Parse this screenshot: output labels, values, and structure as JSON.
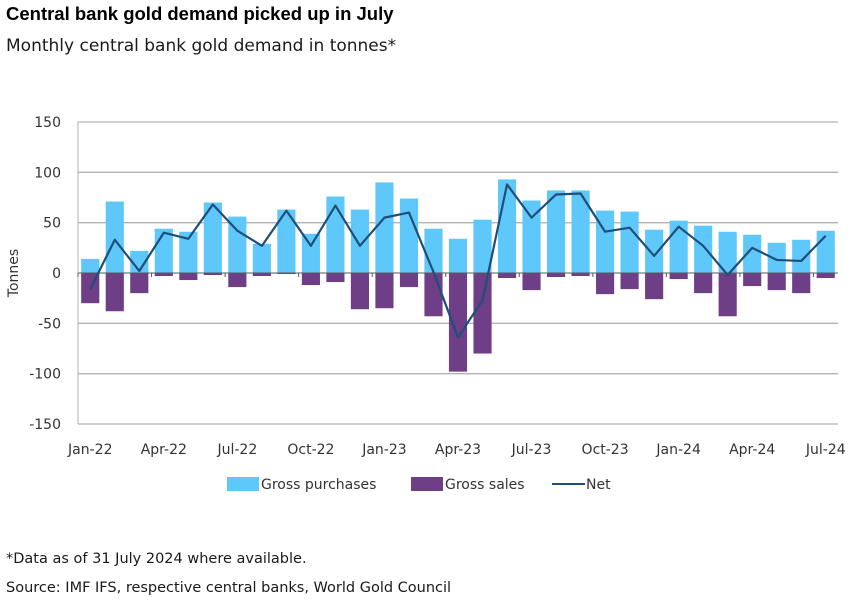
{
  "header": {
    "title": "Central bank gold demand picked up in July",
    "subtitle": "Monthly central bank gold demand in tonnes*"
  },
  "footer": {
    "note": "*Data as of 31 July 2024 where available.",
    "source": "Source: IMF IFS, respective central banks, World Gold Council"
  },
  "colors": {
    "purchases": "#5EC8FA",
    "sales": "#6E3F86",
    "net": "#1F4E79",
    "grid": "#b3b3b3",
    "axis": "#595959"
  },
  "chart_data": {
    "type": "bar",
    "title": "Central bank gold demand picked up in July",
    "subtitle": "Monthly central bank gold demand in tonnes*",
    "xlabel": "",
    "ylabel": "Tonnes",
    "ylim": [
      -150,
      150
    ],
    "yticks": [
      150,
      100,
      50,
      0,
      -50,
      -100,
      -150
    ],
    "grid": true,
    "legend_position": "bottom",
    "categories": [
      "Jan-22",
      "Feb-22",
      "Mar-22",
      "Apr-22",
      "May-22",
      "Jun-22",
      "Jul-22",
      "Aug-22",
      "Sep-22",
      "Oct-22",
      "Nov-22",
      "Dec-22",
      "Jan-23",
      "Feb-23",
      "Mar-23",
      "Apr-23",
      "May-23",
      "Jun-23",
      "Jul-23",
      "Aug-23",
      "Sep-23",
      "Oct-23",
      "Nov-23",
      "Dec-23",
      "Jan-24",
      "Feb-24",
      "Mar-24",
      "Apr-24",
      "May-24",
      "Jun-24",
      "Jul-24"
    ],
    "xtick_labels": [
      "Jan-22",
      "Apr-22",
      "Jul-22",
      "Oct-22",
      "Jan-23",
      "Apr-23",
      "Jul-23",
      "Oct-23",
      "Jan-24",
      "Apr-24",
      "Jul-24"
    ],
    "series": [
      {
        "name": "Gross purchases",
        "type": "bar",
        "values": [
          14,
          71,
          22,
          44,
          41,
          70,
          56,
          29,
          63,
          39,
          76,
          63,
          90,
          74,
          44,
          34,
          53,
          93,
          72,
          82,
          82,
          62,
          61,
          43,
          52,
          47,
          41,
          38,
          30,
          33,
          42
        ]
      },
      {
        "name": "Gross sales",
        "type": "bar",
        "values": [
          -30,
          -38,
          -20,
          -3,
          -7,
          -2,
          -14,
          -3,
          -1,
          -12,
          -9,
          -36,
          -35,
          -14,
          -43,
          -98,
          -80,
          -5,
          -17,
          -4,
          -3,
          -21,
          -16,
          -26,
          -6,
          -20,
          -43,
          -13,
          -17,
          -20,
          -5
        ]
      },
      {
        "name": "Net",
        "type": "line",
        "values": [
          -16,
          33,
          2,
          40,
          34,
          68,
          42,
          27,
          62,
          27,
          67,
          27,
          55,
          60,
          1,
          -64,
          -27,
          88,
          55,
          78,
          79,
          41,
          45,
          17,
          46,
          27,
          -2,
          25,
          13,
          12,
          37
        ]
      }
    ]
  }
}
